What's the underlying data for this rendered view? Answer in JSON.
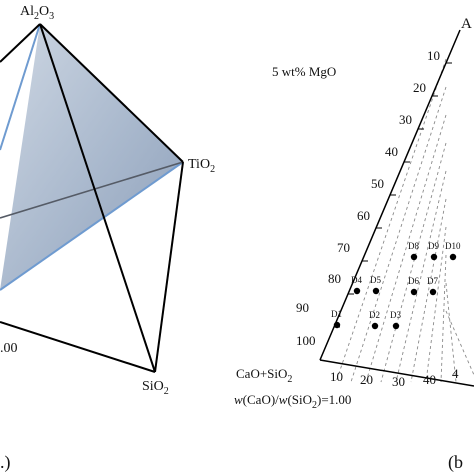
{
  "tetrahedron": {
    "vertices": {
      "top": {
        "main": "Al",
        "sub1": "2",
        "mid": "O",
        "sub2": "3"
      },
      "right": {
        "main": "TiO",
        "sub1": "2"
      },
      "bottom": {
        "main": "SiO",
        "sub1": "2"
      }
    },
    "ratio_fragment": ".00",
    "panel_label_fragment": ".)"
  },
  "ternary": {
    "title": "5 wt% MgO",
    "apex_label_fragment": "A",
    "left_axis_ticks": [
      "10",
      "20",
      "30",
      "40",
      "50",
      "60",
      "70",
      "80",
      "90",
      "100"
    ],
    "bottom_axis_ticks": [
      "10",
      "20",
      "30",
      "40"
    ],
    "bottom_left_label": {
      "main": "CaO+SiO",
      "sub": "2"
    },
    "ratio_label": {
      "w1": "w",
      "f1": "(CaO)/",
      "w2": "w",
      "f2": "(SiO",
      "sub": "2",
      "f3": ")=1.00"
    },
    "panel_label_fragment": "(b",
    "points": [
      "D1",
      "D2",
      "D3",
      "D4",
      "D5",
      "D6",
      "D7",
      "D8",
      "D9",
      "D10"
    ]
  },
  "colors": {
    "plane_fill": "#a9b8cc",
    "plane_edge": "#6f9bd0",
    "line": "#000000",
    "point": "#000000",
    "dashed": "#8a8a8a"
  }
}
